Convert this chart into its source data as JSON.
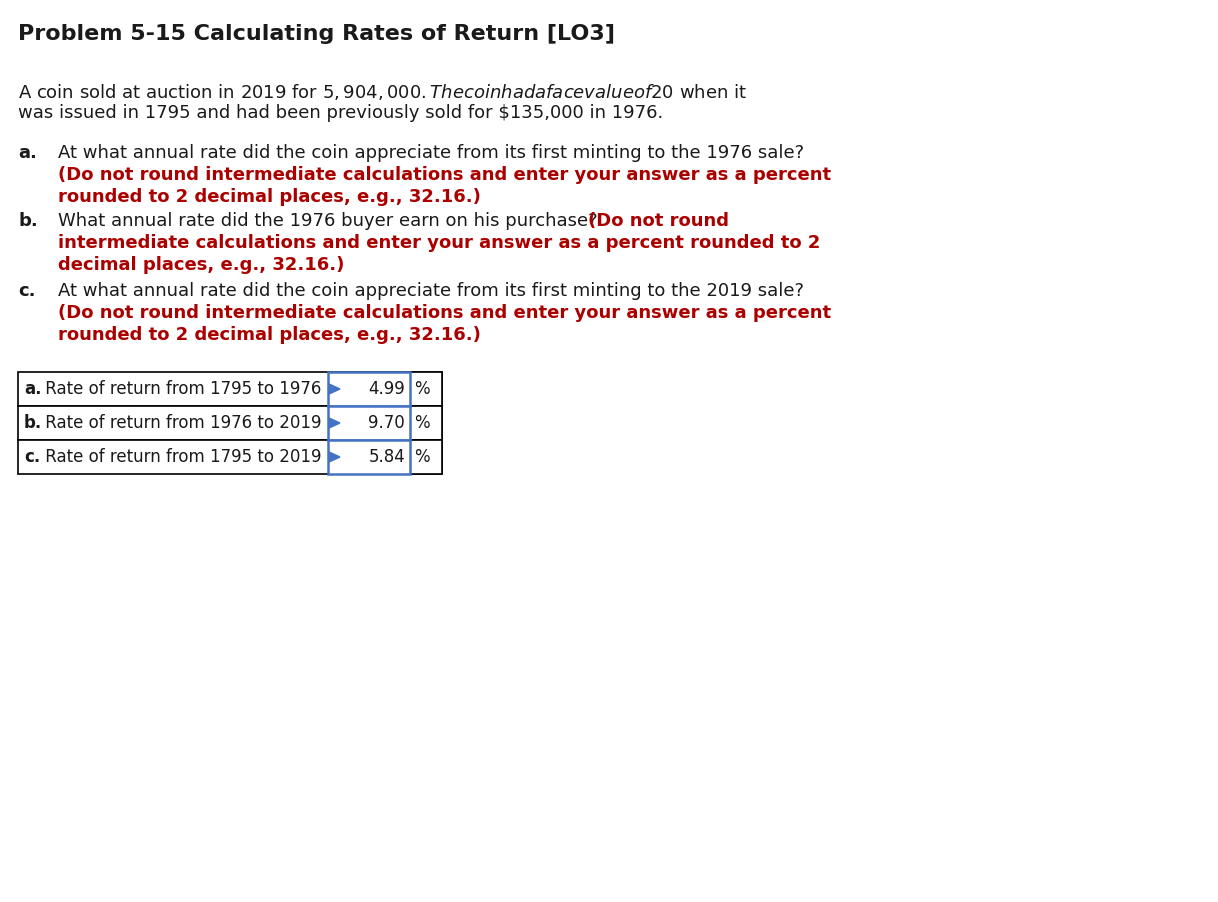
{
  "title": "Problem 5-15 Calculating Rates of Return [LO3]",
  "background_color": "#ffffff",
  "normal_color": "#1a1a1a",
  "red_color": "#aa0000",
  "blue_color": "#4472c4",
  "title_fontsize": 16,
  "body_fontsize": 13,
  "table_rows": [
    {
      "bold": "a.",
      "rest": " Rate of return from 1795 to 1976",
      "value": "4.99",
      "unit": "%"
    },
    {
      "bold": "b.",
      "rest": " Rate of return from 1976 to 2019",
      "value": "9.70",
      "unit": "%"
    },
    {
      "bold": "c.",
      "rest": " Rate of return from 1795 to 2019",
      "value": "5.84",
      "unit": "%"
    }
  ]
}
